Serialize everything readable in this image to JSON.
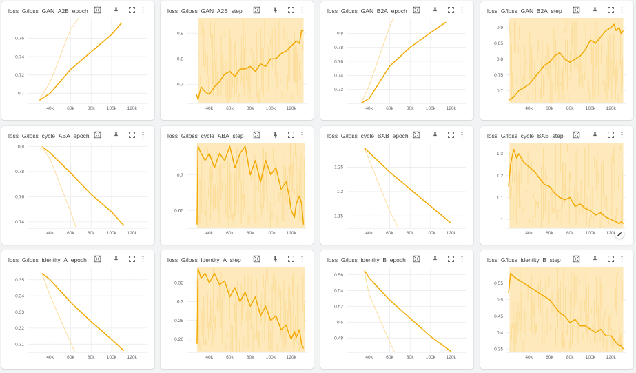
{
  "colors": {
    "accent": "#f4ad00",
    "smoothed": "#f2a900",
    "raw": "#fddd9c",
    "raw_fill": "#fde9bb",
    "grid": "#ececec"
  },
  "icons": [
    "fit-domain-icon",
    "pin-icon",
    "fullscreen-icon",
    "more-vert-icon"
  ],
  "x_ticks": [
    "40k",
    "60k",
    "80k",
    "100k",
    "120k"
  ],
  "edit_icon": "pencil-icon",
  "chart_data": [
    {
      "id": "gan-a2b-epoch",
      "title": "loss_G/loss_GAN_A2B_epoch",
      "type": "line",
      "xlim": [
        18000,
        135000
      ],
      "ylim": [
        0.689,
        0.782
      ],
      "y_ticks": [
        "0.7",
        "0.72",
        "0.74",
        "0.76"
      ],
      "y_tick_values": [
        0.7,
        0.72,
        0.74,
        0.76
      ],
      "series": [
        {
          "role": "smoothed",
          "x": [
            29000,
            40000,
            60000,
            80000,
            100000,
            110000
          ],
          "y": [
            0.692,
            0.7,
            0.726,
            0.745,
            0.764,
            0.777
          ]
        },
        {
          "role": "raw",
          "x": [
            29000,
            40000,
            60000,
            70000
          ],
          "y": [
            0.692,
            0.712,
            0.77,
            0.785
          ]
        }
      ]
    },
    {
      "id": "gan-a2b-step",
      "title": "loss_G/loss_GAN_A2B_step",
      "type": "line",
      "xlim": [
        18000,
        135000
      ],
      "ylim": [
        0.625,
        0.96
      ],
      "y_ticks": [
        "0.7",
        "0.8",
        "0.9"
      ],
      "y_tick_values": [
        0.7,
        0.8,
        0.9
      ],
      "raw_band": [
        29000,
        132000
      ],
      "series": [
        {
          "role": "smoothed",
          "x": [
            27500,
            29000,
            32000,
            36000,
            40000,
            45000,
            50000,
            55000,
            60000,
            65000,
            70000,
            75000,
            80000,
            85000,
            90000,
            95000,
            100000,
            105000,
            110000,
            115000,
            120000,
            125000,
            128000,
            130000,
            132000
          ],
          "y": [
            0.66,
            0.64,
            0.69,
            0.67,
            0.66,
            0.69,
            0.71,
            0.74,
            0.75,
            0.73,
            0.76,
            0.76,
            0.77,
            0.75,
            0.78,
            0.77,
            0.8,
            0.8,
            0.82,
            0.83,
            0.85,
            0.87,
            0.86,
            0.91,
            0.91
          ]
        }
      ]
    },
    {
      "id": "gan-b2a-epoch",
      "title": "loss_G/loss_GAN_B2A_epoch",
      "type": "line",
      "xlim": [
        18000,
        135000
      ],
      "ylim": [
        0.7,
        0.822
      ],
      "y_ticks": [
        "0.72",
        "0.74",
        "0.76",
        "0.78",
        "0.8"
      ],
      "y_tick_values": [
        0.72,
        0.74,
        0.76,
        0.78,
        0.8
      ],
      "series": [
        {
          "role": "smoothed",
          "x": [
            32000,
            40000,
            60000,
            80000,
            100000,
            115000
          ],
          "y": [
            0.7,
            0.707,
            0.753,
            0.78,
            0.801,
            0.816
          ]
        },
        {
          "role": "raw",
          "x": [
            32000,
            40000,
            60000,
            65000
          ],
          "y": [
            0.7,
            0.725,
            0.81,
            0.825
          ]
        }
      ]
    },
    {
      "id": "gan-b2a-step",
      "title": "loss_G/loss_GAN_B2A_step",
      "type": "line",
      "xlim": [
        18000,
        135000
      ],
      "ylim": [
        0.66,
        0.93
      ],
      "y_ticks": [
        "0.7",
        "0.75",
        "0.8",
        "0.85",
        "0.9"
      ],
      "y_tick_values": [
        0.7,
        0.75,
        0.8,
        0.85,
        0.9
      ],
      "raw_band": [
        21000,
        132000
      ],
      "series": [
        {
          "role": "smoothed",
          "x": [
            20000,
            25000,
            30000,
            35000,
            40000,
            45000,
            50000,
            55000,
            60000,
            65000,
            70000,
            75000,
            80000,
            85000,
            90000,
            95000,
            100000,
            105000,
            110000,
            115000,
            120000,
            123000,
            125000,
            128000,
            130000,
            132000
          ],
          "y": [
            0.67,
            0.68,
            0.7,
            0.71,
            0.72,
            0.74,
            0.76,
            0.78,
            0.79,
            0.81,
            0.82,
            0.8,
            0.79,
            0.8,
            0.81,
            0.83,
            0.86,
            0.85,
            0.87,
            0.89,
            0.9,
            0.91,
            0.89,
            0.9,
            0.88,
            0.89
          ]
        }
      ]
    },
    {
      "id": "cycle-aba-epoch",
      "title": "loss_G/loss_cycle_ABA_epoch",
      "type": "line",
      "xlim": [
        18000,
        135000
      ],
      "ylim": [
        0.735,
        0.803
      ],
      "y_ticks": [
        "0.74",
        "0.76",
        "0.78",
        "0.8"
      ],
      "y_tick_values": [
        0.74,
        0.76,
        0.78,
        0.8
      ],
      "series": [
        {
          "role": "smoothed",
          "x": [
            32000,
            40000,
            60000,
            80000,
            100000,
            112000
          ],
          "y": [
            0.8,
            0.795,
            0.779,
            0.762,
            0.748,
            0.737
          ]
        },
        {
          "role": "raw",
          "x": [
            32000,
            40000,
            60000,
            65000
          ],
          "y": [
            0.8,
            0.79,
            0.748,
            0.736
          ]
        }
      ]
    },
    {
      "id": "cycle-aba-step",
      "title": "loss_G/loss_cycle_ABA_step",
      "type": "line",
      "xlim": [
        18000,
        135000
      ],
      "ylim": [
        0.625,
        0.745
      ],
      "y_ticks": [
        "0.65",
        "0.7"
      ],
      "y_tick_values": [
        0.65,
        0.7
      ],
      "raw_band": [
        28000,
        133000
      ],
      "series": [
        {
          "role": "smoothed",
          "x": [
            28000,
            29000,
            32000,
            36000,
            40000,
            45000,
            50000,
            55000,
            60000,
            65000,
            70000,
            75000,
            80000,
            85000,
            90000,
            95000,
            100000,
            105000,
            110000,
            115000,
            118000,
            120000,
            123000,
            125000,
            128000,
            130000,
            132000
          ],
          "y": [
            0.63,
            0.74,
            0.73,
            0.72,
            0.73,
            0.71,
            0.73,
            0.72,
            0.74,
            0.71,
            0.73,
            0.74,
            0.7,
            0.72,
            0.69,
            0.72,
            0.7,
            0.71,
            0.68,
            0.69,
            0.67,
            0.65,
            0.64,
            0.66,
            0.67,
            0.66,
            0.63
          ]
        }
      ]
    },
    {
      "id": "cycle-bab-epoch",
      "title": "loss_G/loss_cycle_BAB_epoch",
      "type": "line",
      "xlim": [
        18000,
        135000
      ],
      "ylim": [
        1.125,
        1.3
      ],
      "y_ticks": [
        "1.15",
        "1.2",
        "1.25"
      ],
      "y_tick_values": [
        1.15,
        1.2,
        1.25
      ],
      "series": [
        {
          "role": "smoothed",
          "x": [
            35000,
            40000,
            60000,
            80000,
            100000,
            120000
          ],
          "y": [
            1.29,
            1.28,
            1.24,
            1.205,
            1.17,
            1.135
          ]
        },
        {
          "role": "raw",
          "x": [
            35000,
            40000,
            60000,
            70000
          ],
          "y": [
            1.29,
            1.265,
            1.16,
            1.12
          ]
        }
      ]
    },
    {
      "id": "cycle-bab-step",
      "title": "loss_G/loss_cycle_BAB_step",
      "type": "line",
      "xlim": [
        18000,
        135000
      ],
      "ylim": [
        0.96,
        1.35
      ],
      "y_ticks": [
        "1",
        "1.1",
        "1.2",
        "1.3"
      ],
      "y_tick_values": [
        1.0,
        1.1,
        1.2,
        1.3
      ],
      "raw_band": [
        21000,
        132000
      ],
      "series": [
        {
          "role": "smoothed",
          "x": [
            20000,
            22000,
            25000,
            28000,
            30000,
            35000,
            40000,
            45000,
            50000,
            55000,
            60000,
            65000,
            70000,
            75000,
            80000,
            85000,
            90000,
            95000,
            100000,
            105000,
            110000,
            115000,
            120000,
            125000,
            128000,
            130000,
            132000
          ],
          "y": [
            1.15,
            1.25,
            1.32,
            1.28,
            1.3,
            1.26,
            1.24,
            1.22,
            1.19,
            1.16,
            1.15,
            1.12,
            1.1,
            1.09,
            1.1,
            1.06,
            1.07,
            1.05,
            1.04,
            1.02,
            1.03,
            1.01,
            1.0,
            0.99,
            0.98,
            0.99,
            0.98
          ]
        }
      ]
    },
    {
      "id": "identity-a-epoch",
      "title": "loss_G/loss_identity_A_epoch",
      "type": "line",
      "xlim": [
        18000,
        135000
      ],
      "ylim": [
        0.305,
        0.358
      ],
      "y_ticks": [
        "0.31",
        "0.32",
        "0.33",
        "0.34",
        "0.35"
      ],
      "y_tick_values": [
        0.31,
        0.32,
        0.33,
        0.34,
        0.35
      ],
      "series": [
        {
          "role": "smoothed",
          "x": [
            32000,
            40000,
            60000,
            80000,
            100000,
            112000
          ],
          "y": [
            0.354,
            0.35,
            0.336,
            0.324,
            0.313,
            0.306
          ]
        },
        {
          "role": "raw",
          "x": [
            32000,
            40000,
            60000,
            65000
          ],
          "y": [
            0.354,
            0.34,
            0.311,
            0.304
          ]
        }
      ]
    },
    {
      "id": "identity-a-step",
      "title": "loss_G/loss_identity_A_step",
      "type": "line",
      "xlim": [
        18000,
        135000
      ],
      "ylim": [
        0.246,
        0.337
      ],
      "y_ticks": [
        "0.26",
        "0.28",
        "0.3",
        "0.32"
      ],
      "y_tick_values": [
        0.26,
        0.28,
        0.3,
        0.32
      ],
      "raw_band": [
        28000,
        133000
      ],
      "series": [
        {
          "role": "smoothed",
          "x": [
            28000,
            29000,
            32000,
            36000,
            40000,
            45000,
            50000,
            55000,
            60000,
            65000,
            70000,
            75000,
            80000,
            85000,
            90000,
            95000,
            100000,
            105000,
            110000,
            115000,
            118000,
            120000,
            123000,
            125000,
            128000,
            130000,
            132000
          ],
          "y": [
            0.255,
            0.335,
            0.325,
            0.33,
            0.32,
            0.33,
            0.318,
            0.322,
            0.305,
            0.315,
            0.3,
            0.31,
            0.295,
            0.305,
            0.285,
            0.295,
            0.28,
            0.285,
            0.27,
            0.275,
            0.265,
            0.26,
            0.268,
            0.262,
            0.27,
            0.255,
            0.25
          ]
        }
      ]
    },
    {
      "id": "identity-b-epoch",
      "title": "loss_G/loss_identity_B_epoch",
      "type": "line",
      "xlim": [
        18000,
        135000
      ],
      "ylim": [
        0.462,
        0.57
      ],
      "y_ticks": [
        "0.48",
        "0.5",
        "0.52",
        "0.54",
        "0.56"
      ],
      "y_tick_values": [
        0.48,
        0.5,
        0.52,
        0.54,
        0.56
      ],
      "series": [
        {
          "role": "smoothed",
          "x": [
            35000,
            40000,
            60000,
            80000,
            100000,
            120000
          ],
          "y": [
            0.566,
            0.556,
            0.528,
            0.505,
            0.482,
            0.463
          ]
        },
        {
          "role": "raw",
          "x": [
            35000,
            40000,
            60000,
            65000
          ],
          "y": [
            0.566,
            0.535,
            0.475,
            0.462
          ]
        }
      ]
    },
    {
      "id": "identity-b-step",
      "title": "loss_G/loss_identity_B_step",
      "type": "line",
      "xlim": [
        18000,
        135000
      ],
      "ylim": [
        0.34,
        0.6
      ],
      "y_ticks": [
        "0.35",
        "0.4",
        "0.45",
        "0.5",
        "0.55"
      ],
      "y_tick_values": [
        0.35,
        0.4,
        0.45,
        0.5,
        0.55
      ],
      "raw_band": [
        21000,
        132000
      ],
      "series": [
        {
          "role": "smoothed",
          "x": [
            20000,
            22000,
            25000,
            30000,
            35000,
            40000,
            45000,
            50000,
            55000,
            60000,
            65000,
            70000,
            75000,
            80000,
            85000,
            90000,
            95000,
            100000,
            105000,
            110000,
            115000,
            120000,
            125000,
            128000,
            130000,
            132000
          ],
          "y": [
            0.52,
            0.58,
            0.57,
            0.56,
            0.55,
            0.54,
            0.53,
            0.52,
            0.51,
            0.5,
            0.48,
            0.46,
            0.45,
            0.43,
            0.44,
            0.42,
            0.42,
            0.41,
            0.4,
            0.41,
            0.39,
            0.39,
            0.37,
            0.36,
            0.36,
            0.35
          ]
        }
      ]
    }
  ]
}
